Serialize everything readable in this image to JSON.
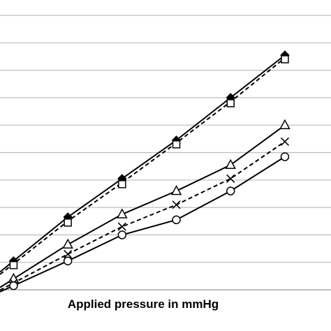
{
  "chart_data": {
    "type": "line",
    "title": "",
    "xlabel": "Applied pressure in mmHg",
    "ylabel": "",
    "grid": "horizontal",
    "x": [
      1,
      2,
      3,
      4,
      5,
      6
    ],
    "xlim": [
      0.75,
      6.85
    ],
    "ylim": [
      0,
      10
    ],
    "yticks": [
      0,
      1,
      2,
      3,
      4,
      5,
      6,
      7,
      8,
      9,
      10
    ],
    "series": [
      {
        "marker": "diamond-filled",
        "dash": "solid",
        "values": [
          1.05,
          2.65,
          4.05,
          5.45,
          7.0,
          8.55
        ]
      },
      {
        "marker": "square",
        "dash": "dashed",
        "values": [
          0.95,
          2.5,
          3.9,
          5.35,
          6.85,
          8.45
        ]
      },
      {
        "marker": "triangle",
        "dash": "solid",
        "values": [
          0.4,
          1.65,
          2.75,
          3.6,
          4.55,
          6.0
        ]
      },
      {
        "marker": "x",
        "dash": "dashed",
        "values": [
          0.25,
          1.3,
          2.3,
          3.1,
          4.05,
          5.4
        ]
      },
      {
        "marker": "circle",
        "dash": "solid",
        "values": [
          0.15,
          1.05,
          2.0,
          2.55,
          3.6,
          4.85
        ]
      }
    ]
  }
}
